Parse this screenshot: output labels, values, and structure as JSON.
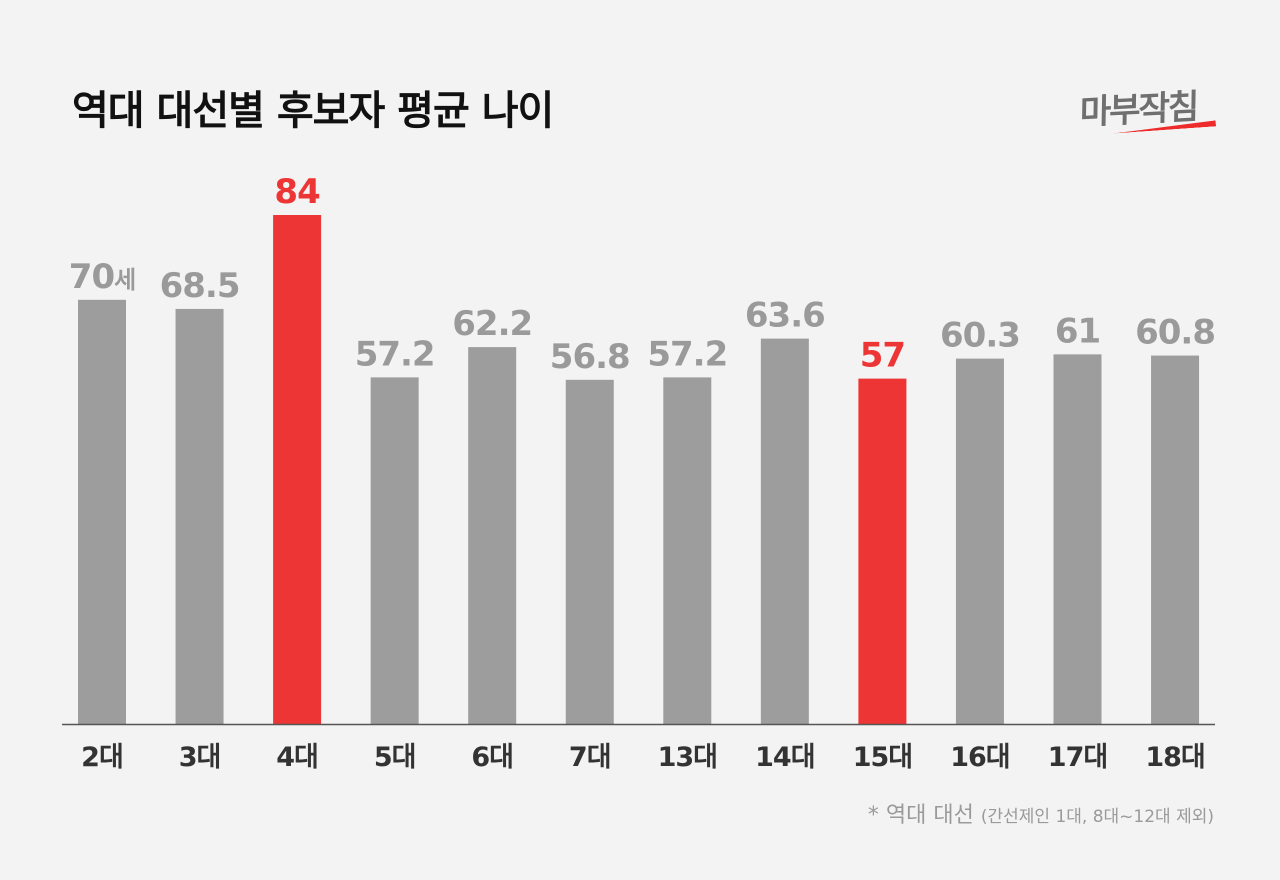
{
  "title": "역대 대선별 후보자 평균 나이",
  "logo": "마부작침",
  "footnote": {
    "main": "* 역대 대선",
    "detail": "(간선제인 1대, 8대~12대 제외)"
  },
  "colors": {
    "default": "#9d9d9d",
    "highlight": "#ee3535",
    "label_default": "#9a9a9a"
  },
  "chart_data": {
    "type": "bar",
    "title": "역대 대선별 후보자 평균 나이",
    "categories": [
      "2대",
      "3대",
      "4대",
      "5대",
      "6대",
      "7대",
      "13대",
      "14대",
      "15대",
      "16대",
      "17대",
      "18대"
    ],
    "values": [
      70,
      68.5,
      84,
      57.2,
      62.2,
      56.8,
      57.2,
      63.6,
      57,
      60.3,
      61,
      60.8
    ],
    "data_labels": [
      "70",
      "68.5",
      "84",
      "57.2",
      "62.2",
      "56.8",
      "57.2",
      "63.6",
      "57",
      "60.3",
      "61",
      "60.8"
    ],
    "first_label_unit": "세",
    "highlighted": [
      "4대",
      "15대"
    ],
    "ylim": [
      0,
      84
    ],
    "grid": false,
    "legend": "none"
  }
}
